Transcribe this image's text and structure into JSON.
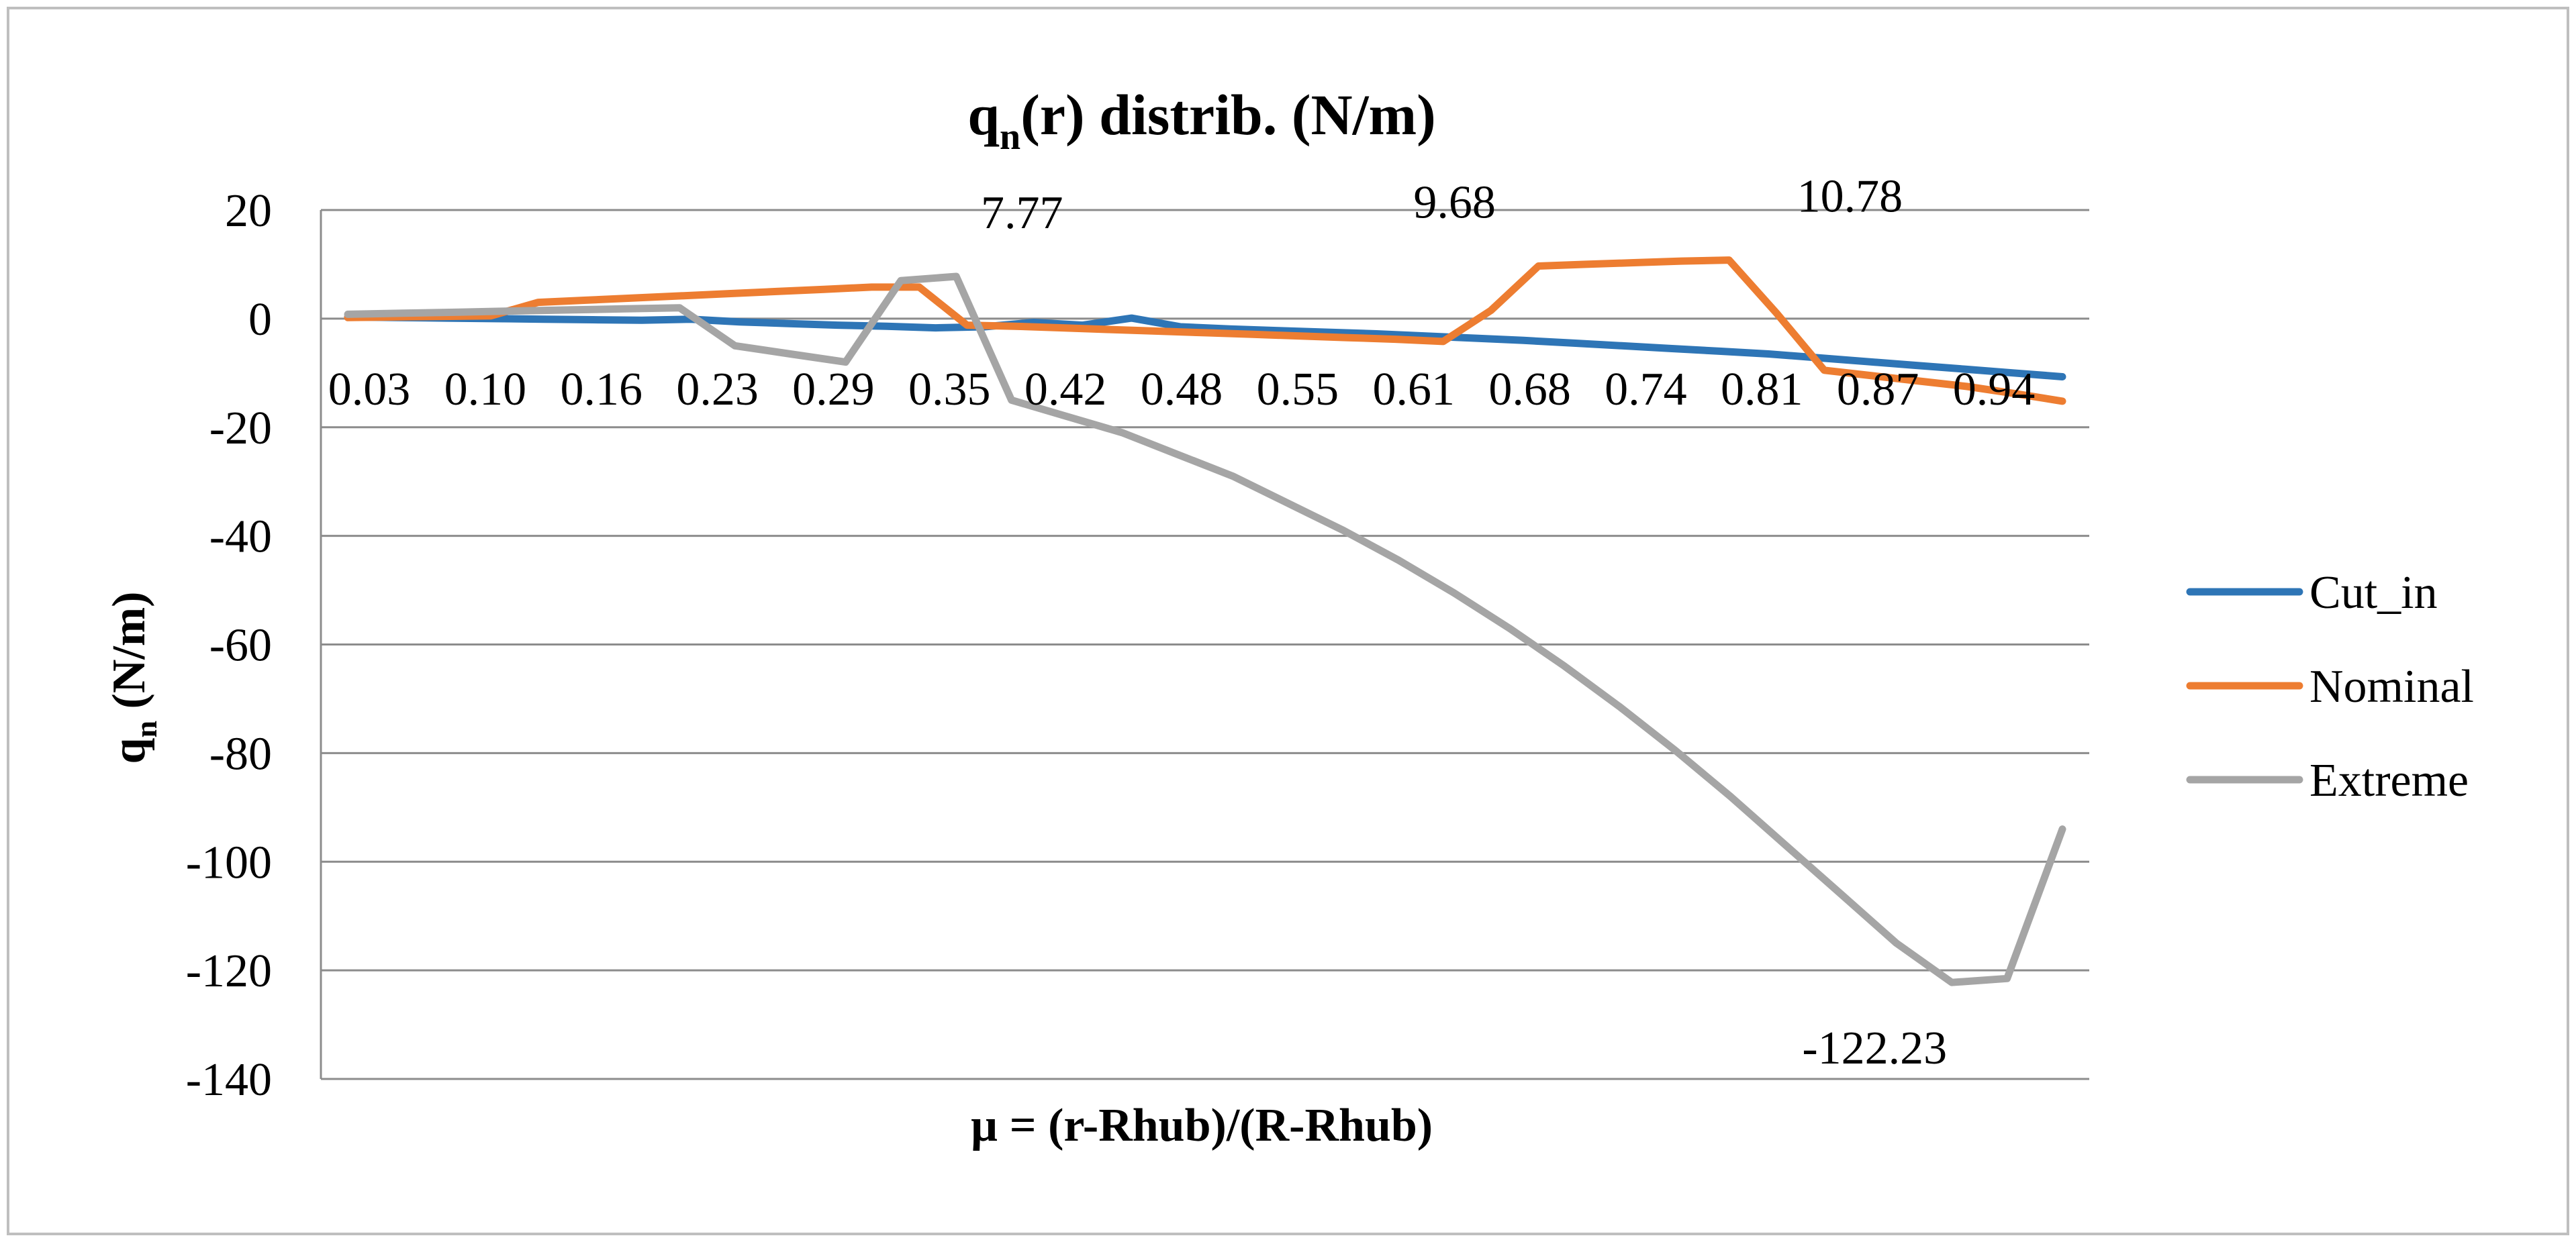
{
  "chart_data": {
    "type": "line",
    "title": {
      "main": "q",
      "sub": "n",
      "rest": "(r) distrib. (N/m)"
    },
    "xlabel": "µ = (r-Rhub)/(R-Rhub)",
    "ylabel": {
      "main": "q",
      "sub": "n",
      "rest": " (N/m)"
    },
    "ylim": [
      -140,
      20
    ],
    "yticks": [
      20,
      0,
      -20,
      -40,
      -60,
      -80,
      -100,
      -120,
      -140
    ],
    "xtick_labels": [
      "0.03",
      "0.10",
      "0.16",
      "0.23",
      "0.29",
      "0.35",
      "0.42",
      "0.48",
      "0.55",
      "0.61",
      "0.68",
      "0.74",
      "0.81",
      "0.87",
      "0.94"
    ],
    "grid": true,
    "legend_position": "right",
    "series": [
      {
        "name": "Cut_in",
        "color": "#2E75B6",
        "values": [
          0.3,
          0.2,
          0.1,
          0.0,
          -0.1,
          -0.2,
          -0.3,
          -0.1,
          -0.6,
          -0.9,
          -1.2,
          -1.4,
          -1.7,
          -1.5,
          -0.7,
          -1.2,
          0.1,
          -1.5,
          -1.9,
          -2.2,
          -2.5,
          -2.8,
          -3.2,
          -3.6,
          -4.0,
          -4.5,
          -5.0,
          -5.5,
          -6.0,
          -6.5,
          -7.2,
          -7.9,
          -8.6,
          -9.3,
          -10.0,
          -10.7
        ]
      },
      {
        "name": "Nominal",
        "color": "#ED7D31",
        "values": [
          0.2,
          0.3,
          0.4,
          0.5,
          3.0,
          3.4,
          3.8,
          4.2,
          4.6,
          5.0,
          5.4,
          5.8,
          5.8,
          -1.2,
          -1.4,
          -1.7,
          -2.0,
          -2.3,
          -2.6,
          -2.9,
          -3.2,
          -3.5,
          -3.8,
          -4.2,
          1.5,
          9.68,
          10.0,
          10.3,
          10.6,
          10.78,
          1.0,
          -9.5,
          -10.5,
          -11.5,
          -12.5,
          -13.8,
          -15.2
        ]
      },
      {
        "name": "Extreme",
        "color": "#A5A5A5",
        "values": [
          0.8,
          1.0,
          1.2,
          1.4,
          1.6,
          1.8,
          2.0,
          -5.0,
          -6.5,
          -8.0,
          7.0,
          7.77,
          -15.0,
          -18.0,
          -21.0,
          -25.0,
          -29.0,
          -34.0,
          -39.0,
          -44.5,
          -50.5,
          -57.0,
          -64.0,
          -71.5,
          -79.5,
          -88.0,
          -97.0,
          -106.0,
          -115.0,
          -122.23,
          -121.5,
          -94.0
        ]
      }
    ],
    "annotations": [
      {
        "text": "7.77",
        "series": "Extreme",
        "x_index": 11,
        "value": 7.77
      },
      {
        "text": "9.68",
        "series": "Nominal",
        "x_index": 25,
        "value": 9.68
      },
      {
        "text": "10.78",
        "series": "Nominal",
        "x_index": 29,
        "value": 10.78
      },
      {
        "text": "-122.23",
        "series": "Extreme",
        "x_index": 29,
        "value": -122.23
      }
    ]
  }
}
